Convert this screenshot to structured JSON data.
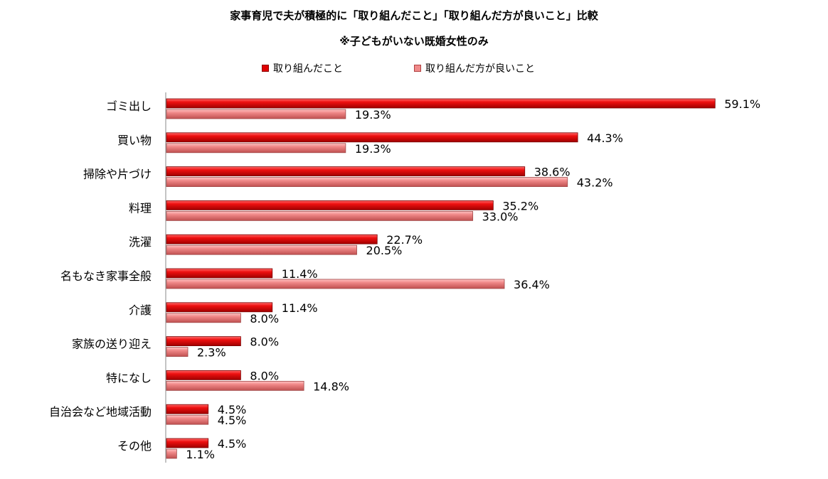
{
  "chart_data": {
    "type": "bar",
    "orientation": "horizontal",
    "title": "家事育児で夫が積極的に「取り組んだこと」「取り組んだ方が良いこと」比較",
    "subtitle": "※子どもがいない既婚女性のみ",
    "categories": [
      "ゴミ出し",
      "買い物",
      "掃除や片づけ",
      "料理",
      "洗濯",
      "名もなき家事全般",
      "介護",
      "家族の送り迎え",
      "特になし",
      "自治会など地域活動",
      "その他"
    ],
    "series": [
      {
        "name": "取り組んだこと",
        "values": [
          59.1,
          44.3,
          38.6,
          35.2,
          22.7,
          11.4,
          11.4,
          8.0,
          8.0,
          4.5,
          4.5
        ],
        "labels": [
          "59.1%",
          "44.3%",
          "38.6%",
          "35.2%",
          "22.7%",
          "11.4%",
          "11.4%",
          "8.0%",
          "8.0%",
          "4.5%",
          "4.5%"
        ],
        "color": "#e00000"
      },
      {
        "name": "取り組んだ方が良いこと",
        "values": [
          19.3,
          19.3,
          43.2,
          33.0,
          20.5,
          36.4,
          8.0,
          2.3,
          14.8,
          4.5,
          1.1
        ],
        "labels": [
          "19.3%",
          "19.3%",
          "43.2%",
          "33.0%",
          "20.5%",
          "36.4%",
          "8.0%",
          "2.3%",
          "14.8%",
          "4.5%",
          "1.1%"
        ],
        "color": "#f08a8a"
      }
    ],
    "xlim": [
      0,
      70
    ],
    "legend": "top"
  }
}
